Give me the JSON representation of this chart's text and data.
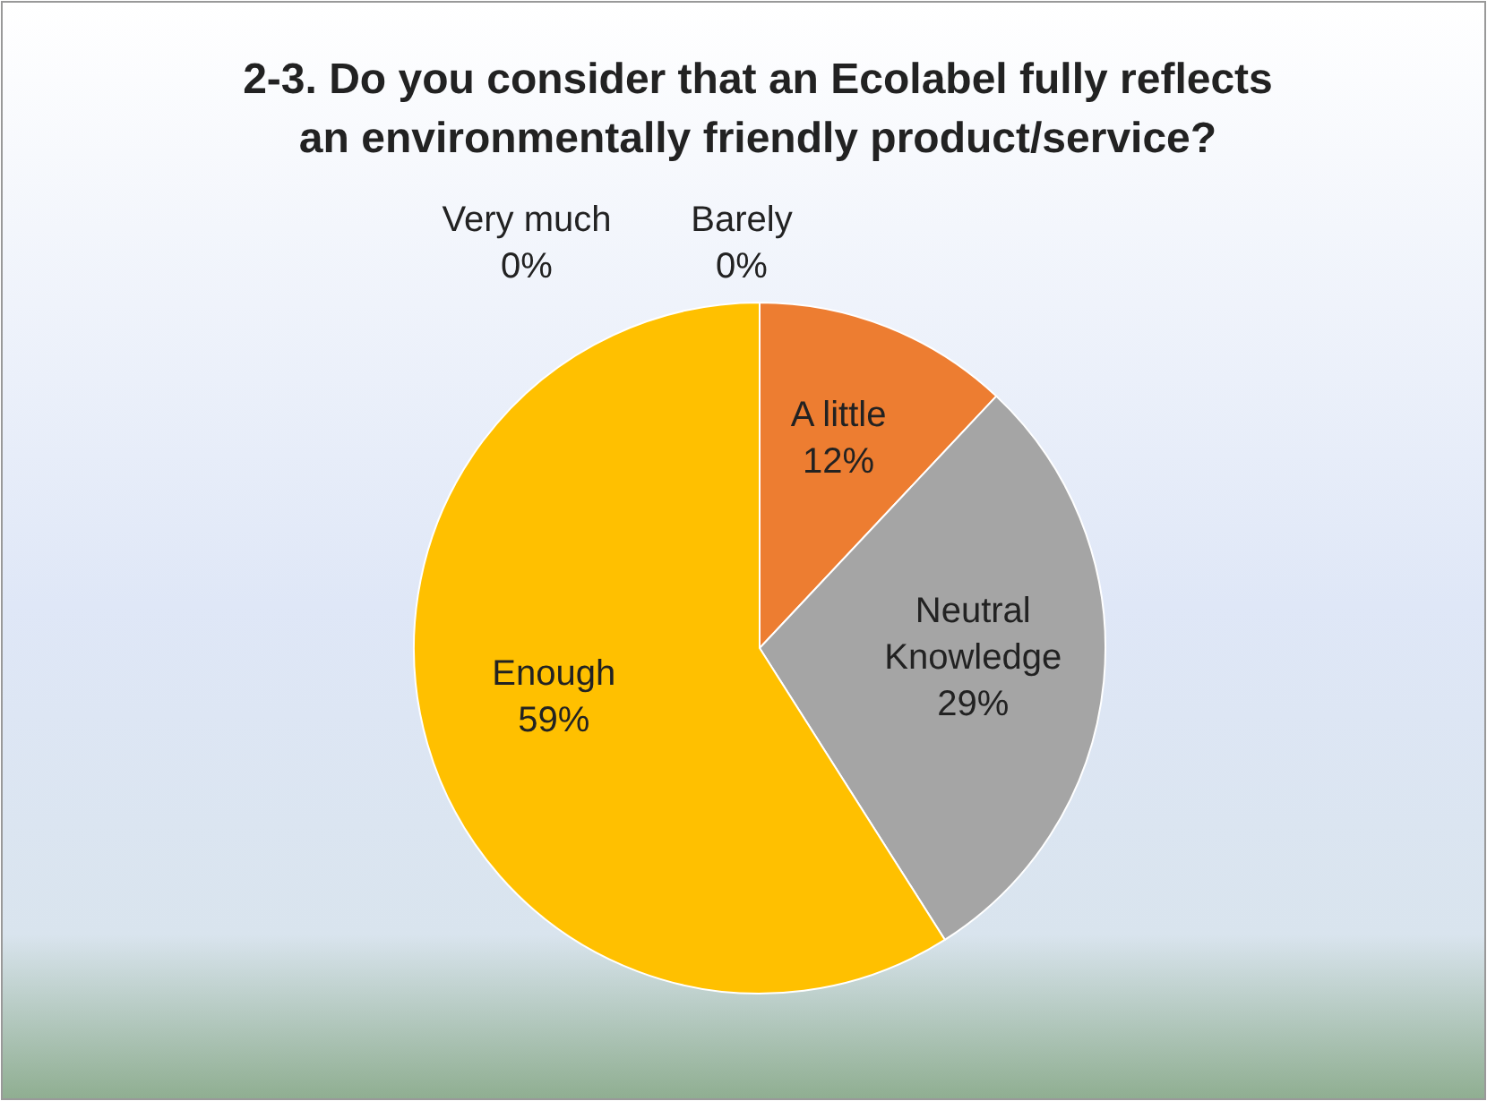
{
  "chart_data": {
    "type": "pie",
    "title": "2-3. Do you consider that an Ecolabel fully reflects an environmentally friendly product/service?",
    "categories": [
      "Barely",
      "A little",
      "Neutral Knowledge",
      "Enough",
      "Very much"
    ],
    "values": [
      0,
      12,
      29,
      59,
      0
    ],
    "colors": [
      "#4472c4",
      "#ed7d31",
      "#a5a5a5",
      "#ffc000",
      "#5b9bd5"
    ],
    "value_labels": [
      "0%",
      "12%",
      "29%",
      "59%",
      "0%"
    ]
  }
}
